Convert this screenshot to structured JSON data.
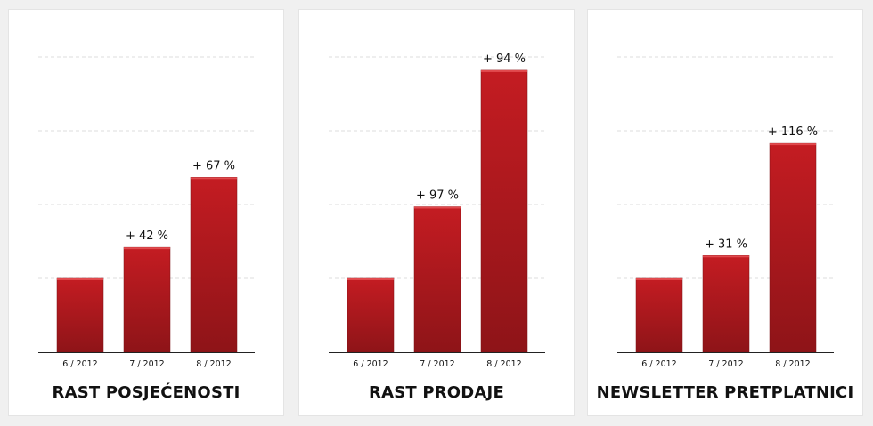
{
  "chart_data": [
    {
      "type": "bar",
      "title": "RAST POSJEĆENOSTI",
      "categories": [
        "6 / 2012",
        "7 / 2012",
        "8 / 2012"
      ],
      "values": [
        1.0,
        1.42,
        2.37
      ],
      "labels": [
        "",
        "+ 42 %",
        "+ 67 %"
      ],
      "ylim": [
        0,
        4
      ],
      "xlabel": "",
      "ylabel": "",
      "grid": true
    },
    {
      "type": "bar",
      "title": "RAST PRODAJE",
      "categories": [
        "6 / 2012",
        "7 / 2012",
        "8 / 2012"
      ],
      "values": [
        1.0,
        1.97,
        3.82
      ],
      "labels": [
        "",
        "+ 97 %",
        "+ 94 %"
      ],
      "ylim": [
        0,
        4
      ],
      "xlabel": "",
      "ylabel": "",
      "grid": true
    },
    {
      "type": "bar",
      "title": "NEWSLETTER PRETPLATNICI",
      "categories": [
        "6 / 2012",
        "7 / 2012",
        "8 / 2012"
      ],
      "values": [
        1.0,
        1.31,
        2.83
      ],
      "labels": [
        "",
        "+ 31 %",
        "+ 116 %"
      ],
      "ylim": [
        0,
        4
      ],
      "xlabel": "",
      "ylabel": "",
      "grid": true
    }
  ],
  "colors": {
    "bar_top": "#c41c22",
    "bar_bottom": "#8e1418",
    "bar_highlight": "#e14a4e",
    "grid": "#dcdcdc",
    "axis": "#222222",
    "text": "#111111"
  }
}
